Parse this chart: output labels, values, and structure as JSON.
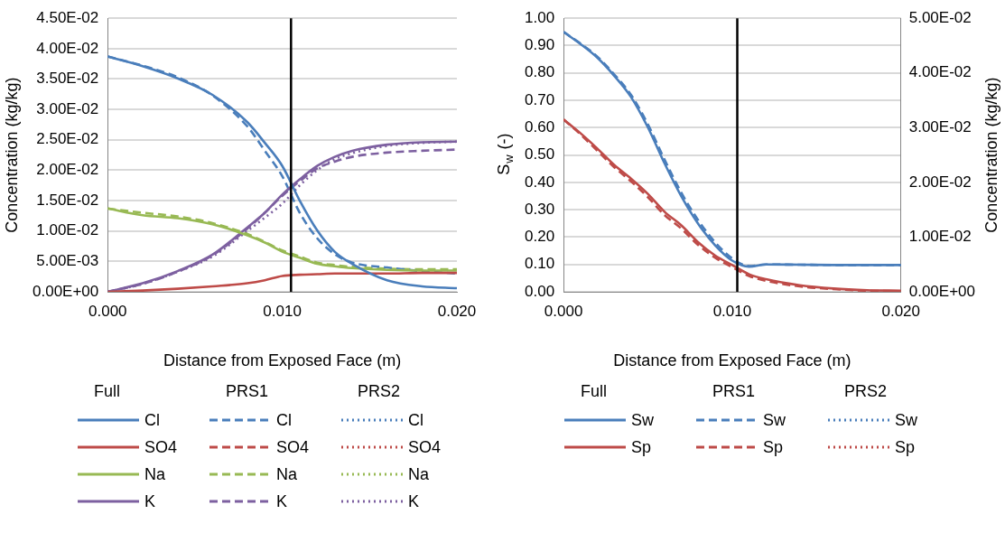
{
  "chart_data": [
    {
      "type": "line",
      "xlabel": "Distance from Exposed Face (m)",
      "ylabel": "Concentration (kg/kg)",
      "xlim": [
        0,
        0.02
      ],
      "xticks": [
        {
          "value": 0,
          "label": "0.000"
        },
        {
          "value": 0.01,
          "label": "0.010"
        },
        {
          "value": 0.02,
          "label": "0.020"
        }
      ],
      "ylim": [
        0,
        0.045
      ],
      "yticks": [
        {
          "value": 0,
          "label": "0.00E+00"
        },
        {
          "value": 0.005,
          "label": "5.00E-03"
        },
        {
          "value": 0.01,
          "label": "1.00E-02"
        },
        {
          "value": 0.015,
          "label": "1.50E-02"
        },
        {
          "value": 0.02,
          "label": "2.00E-02"
        },
        {
          "value": 0.025,
          "label": "2.50E-02"
        },
        {
          "value": 0.03,
          "label": "3.00E-02"
        },
        {
          "value": 0.035,
          "label": "3.50E-02"
        },
        {
          "value": 0.04,
          "label": "4.00E-02"
        },
        {
          "value": 0.045,
          "label": "4.50E-02"
        }
      ],
      "grid": "y",
      "legend": "bottom",
      "annotations": [
        "Full",
        "PRS1",
        "PRS2"
      ],
      "ref_lines": [
        {
          "axis": "x",
          "value": 0.0105,
          "color": "#000000"
        }
      ],
      "x": [
        0,
        0.002,
        0.004,
        0.006,
        0.008,
        0.009,
        0.01,
        0.011,
        0.012,
        0.013,
        0.014,
        0.016,
        0.018,
        0.02
      ],
      "series": [
        {
          "name": "Cl",
          "color": "#4a7ebb",
          "line_style": "solid",
          "values": [
            0.0387,
            0.0371,
            0.0351,
            0.0324,
            0.0279,
            0.0245,
            0.0207,
            0.015,
            0.0101,
            0.0066,
            0.0046,
            0.0019,
            0.0009,
            0.0006
          ]
        },
        {
          "name": "SO4",
          "color": "#be4b48",
          "line_style": "solid",
          "values": [
            0,
            0.0002,
            0.0005,
            0.0009,
            0.0014,
            0.0019,
            0.0026,
            0.0028,
            0.0029,
            0.003,
            0.003,
            0.003,
            0.0031,
            0.0031
          ]
        },
        {
          "name": "Na",
          "color": "#98b954",
          "line_style": "solid",
          "values": [
            0.0137,
            0.0126,
            0.0121,
            0.0111,
            0.0093,
            0.0081,
            0.0066,
            0.0056,
            0.0046,
            0.0042,
            0.0039,
            0.0036,
            0.0035,
            0.0035
          ]
        },
        {
          "name": "K",
          "color": "#7d60a0",
          "line_style": "solid",
          "values": [
            0,
            0.0014,
            0.0034,
            0.0061,
            0.0106,
            0.013,
            0.016,
            0.0185,
            0.0207,
            0.0222,
            0.0232,
            0.0242,
            0.0246,
            0.0247
          ]
        },
        {
          "name": "Cl",
          "color": "#4a7ebb",
          "line_style": "dashed",
          "values": [
            0.0387,
            0.0372,
            0.0353,
            0.0323,
            0.0272,
            0.0232,
            0.019,
            0.013,
            0.0088,
            0.0062,
            0.0048,
            0.004,
            0.0034,
            0.003
          ]
        },
        {
          "name": "SO4",
          "color": "#be4b48",
          "line_style": "dashed",
          "values": [
            null,
            null,
            null,
            null,
            null,
            null,
            null,
            null,
            null,
            null,
            null,
            null,
            null,
            null
          ]
        },
        {
          "name": "Na",
          "color": "#98b954",
          "line_style": "dashed",
          "values": [
            0.0137,
            0.013,
            0.0124,
            0.0113,
            0.0095,
            0.0082,
            0.0068,
            0.0058,
            0.0048,
            0.0044,
            0.0041,
            0.0038,
            0.0037,
            0.0037
          ]
        },
        {
          "name": "K",
          "color": "#7d60a0",
          "line_style": "dashed",
          "values": [
            0,
            0.0013,
            0.0033,
            0.006,
            0.0104,
            0.013,
            0.0158,
            0.0182,
            0.0203,
            0.0214,
            0.0222,
            0.0229,
            0.0232,
            0.0234
          ]
        },
        {
          "name": "Cl",
          "color": "#4a7ebb",
          "line_style": "dotted",
          "values": [
            null,
            null,
            null,
            null,
            null,
            null,
            null,
            null,
            null,
            null,
            null,
            null,
            null,
            null
          ]
        },
        {
          "name": "SO4",
          "color": "#be4b48",
          "line_style": "dotted",
          "values": [
            null,
            null,
            null,
            null,
            null,
            null,
            null,
            null,
            null,
            null,
            null,
            null,
            null,
            null
          ]
        },
        {
          "name": "Na",
          "color": "#98b954",
          "line_style": "dotted",
          "values": [
            null,
            null,
            null,
            null,
            null,
            null,
            null,
            null,
            null,
            null,
            null,
            null,
            null,
            null
          ]
        },
        {
          "name": "K",
          "color": "#7d60a0",
          "line_style": "dotted",
          "values": [
            0,
            0.0013,
            0.0033,
            0.0058,
            0.01,
            0.0122,
            0.0145,
            0.0175,
            0.02,
            0.0218,
            0.0228,
            0.024,
            0.0245,
            0.0247
          ]
        }
      ]
    },
    {
      "type": "line",
      "xlabel": "Distance from Exposed Face (m)",
      "ylabel": "S$_{w}$ (-)",
      "y2label": "Concentration (kg/kg)",
      "xlim": [
        0,
        0.02
      ],
      "xticks": [
        {
          "value": 0,
          "label": "0.000"
        },
        {
          "value": 0.01,
          "label": "0.010"
        },
        {
          "value": 0.02,
          "label": "0.020"
        }
      ],
      "ylim": [
        0,
        1
      ],
      "yticks": [
        {
          "value": 0,
          "label": "0.00"
        },
        {
          "value": 0.1,
          "label": "0.10"
        },
        {
          "value": 0.2,
          "label": "0.20"
        },
        {
          "value": 0.3,
          "label": "0.30"
        },
        {
          "value": 0.4,
          "label": "0.40"
        },
        {
          "value": 0.5,
          "label": "0.50"
        },
        {
          "value": 0.6,
          "label": "0.60"
        },
        {
          "value": 0.7,
          "label": "0.70"
        },
        {
          "value": 0.8,
          "label": "0.80"
        },
        {
          "value": 0.9,
          "label": "0.90"
        },
        {
          "value": 1,
          "label": "1.00"
        }
      ],
      "y2lim": [
        0,
        0.05
      ],
      "y2ticks": [
        {
          "value": 0,
          "label": "0.00E+00"
        },
        {
          "value": 0.01,
          "label": "1.00E-02"
        },
        {
          "value": 0.02,
          "label": "2.00E-02"
        },
        {
          "value": 0.03,
          "label": "3.00E-02"
        },
        {
          "value": 0.04,
          "label": "4.00E-02"
        },
        {
          "value": 0.05,
          "label": "5.00E-02"
        }
      ],
      "grid": "y",
      "legend": "bottom",
      "annotations": [
        "Full",
        "PRS1",
        "PRS2"
      ],
      "ref_lines": [
        {
          "axis": "x",
          "value": 0.0103,
          "color": "#000000"
        }
      ],
      "x": [
        0,
        0.001,
        0.002,
        0.003,
        0.004,
        0.005,
        0.006,
        0.007,
        0.008,
        0.009,
        0.01,
        0.011,
        0.012,
        0.014,
        0.016,
        0.018,
        0.02
      ],
      "series": [
        {
          "name": "Sw",
          "color": "#4a7ebb",
          "line_style": "solid",
          "values": [
            0.95,
            0.906,
            0.856,
            0.79,
            0.712,
            0.601,
            0.468,
            0.347,
            0.247,
            0.169,
            0.114,
            0.092,
            0.1,
            0.099,
            0.098,
            0.098,
            0.098
          ]
        },
        {
          "name": "Sp",
          "color": "#be4b48",
          "line_style": "solid",
          "axis": "y2",
          "values": [
            0.0315,
            0.029,
            0.0262,
            0.0232,
            0.0207,
            0.0179,
            0.0146,
            0.0121,
            0.009,
            0.0066,
            0.0049,
            0.0032,
            0.0023,
            0.0012,
            0.0006,
            0.0003,
            0.0002
          ]
        },
        {
          "name": "Sw",
          "color": "#4a7ebb",
          "line_style": "dashed",
          "values": [
            0.95,
            0.908,
            0.86,
            0.795,
            0.72,
            0.612,
            0.482,
            0.36,
            0.26,
            0.18,
            0.122,
            0.094,
            0.1,
            0.099,
            0.098,
            0.098,
            0.098
          ]
        },
        {
          "name": "Sp",
          "color": "#be4b48",
          "line_style": "dashed",
          "axis": "y2",
          "values": [
            0.0315,
            0.0288,
            0.0258,
            0.0228,
            0.0202,
            0.0173,
            0.014,
            0.0115,
            0.0085,
            0.0062,
            0.0045,
            0.0029,
            0.002,
            0.001,
            0.0005,
            0.0002,
            0.0001
          ]
        },
        {
          "name": "Sw",
          "color": "#4a7ebb",
          "line_style": "dotted",
          "values": [
            null,
            null,
            null,
            null,
            null,
            null,
            null,
            null,
            null,
            null,
            null,
            null,
            null,
            null,
            null,
            null,
            null
          ]
        },
        {
          "name": "Sp",
          "color": "#be4b48",
          "line_style": "dotted",
          "axis": "y2",
          "values": [
            null,
            null,
            null,
            null,
            null,
            null,
            null,
            null,
            null,
            null,
            null,
            null,
            null,
            null,
            null,
            null,
            null
          ]
        }
      ]
    }
  ]
}
